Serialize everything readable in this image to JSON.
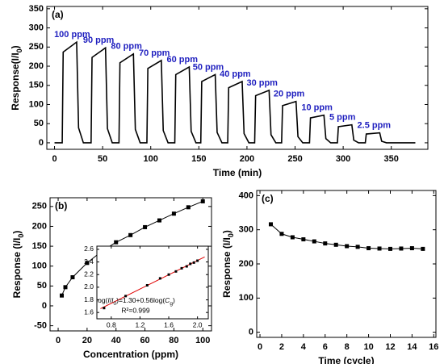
{
  "chart_data": [
    {
      "type": "line",
      "label": "(a)",
      "x_label": "Time (min)",
      "y_label": [
        "Response(I/I",
        "0",
        ")"
      ],
      "xlim": [
        -8,
        388
      ],
      "ylim": [
        -17,
        356
      ],
      "xticks": [
        0,
        50,
        100,
        150,
        200,
        250,
        300,
        350
      ],
      "yticks": [
        0,
        50,
        100,
        150,
        200,
        250,
        300,
        350
      ],
      "color": "#000000",
      "annotation_color": "#1f1fbf",
      "annotations": [
        "100 ppm",
        "90 ppm",
        "80 ppm",
        "70 ppm",
        "60 ppm",
        "50 ppm",
        "40 ppm",
        "30 ppm",
        "20 ppm",
        "10 ppm",
        "5 ppm",
        "2.5 ppm"
      ],
      "x": [
        0,
        8,
        9,
        23,
        25,
        30,
        38,
        39,
        53,
        55,
        60,
        67,
        68,
        82,
        84,
        89,
        96,
        97,
        111,
        113,
        118,
        125,
        126,
        140,
        142,
        147,
        152,
        153,
        167,
        169,
        174,
        180,
        181,
        195,
        197,
        202,
        208,
        209,
        223,
        225,
        230,
        236,
        237,
        251,
        253,
        258,
        265,
        266,
        280,
        282,
        287,
        294,
        295,
        309,
        311,
        316,
        323,
        324,
        338,
        340,
        345,
        375
      ],
      "values": [
        0,
        0,
        237,
        263,
        39,
        0,
        0,
        223,
        248,
        37,
        0,
        0,
        209,
        232,
        35,
        0,
        0,
        194,
        215,
        32,
        0,
        0,
        178,
        198,
        30,
        0,
        0,
        160,
        178,
        27,
        0,
        0,
        144,
        160,
        24,
        0,
        0,
        123,
        137,
        21,
        0,
        0,
        97,
        108,
        16,
        0,
        0,
        65,
        72,
        11,
        0,
        0,
        42,
        47,
        7,
        0,
        0,
        23,
        26,
        4,
        0,
        0
      ]
    },
    {
      "type": "line",
      "label": "(b)",
      "x_label": "Concentration (ppm)",
      "y_label": [
        "Response (I/I",
        "0",
        ")"
      ],
      "xlim": [
        -5.6,
        106
      ],
      "ylim": [
        -63,
        272
      ],
      "xticks": [
        0,
        20,
        40,
        60,
        80,
        100
      ],
      "yticks": [
        -50,
        0,
        50,
        100,
        150,
        200,
        250
      ],
      "color": "#000000",
      "markers": "square",
      "x": [
        2.5,
        5,
        10,
        20,
        30,
        40,
        50,
        60,
        70,
        80,
        90,
        100
      ],
      "values": [
        26,
        47,
        72,
        108,
        137,
        160,
        178,
        198,
        215,
        232,
        248,
        263
      ]
    },
    {
      "type": "scatter",
      "xlim": [
        0.6,
        2.15
      ],
      "ylim": [
        1.5,
        2.65
      ],
      "xticks": [
        0.8,
        1.2,
        1.6,
        {
          "value": 2,
          "label": "2.0"
        }
      ],
      "yticks": [
        1.6,
        1.8,
        {
          "value": 2,
          "label": "2.0"
        },
        2.2,
        2.4,
        2.6
      ],
      "color": "#000000",
      "x": [
        0.7,
        1.0,
        1.3,
        1.48,
        1.6,
        1.7,
        1.78,
        1.85,
        1.9,
        1.95,
        2.0
      ],
      "values": [
        1.67,
        1.86,
        2.03,
        2.14,
        2.2,
        2.25,
        2.3,
        2.33,
        2.37,
        2.39,
        2.42
      ],
      "fit": {
        "color": "#e00000",
        "x": [
          0.65,
          2.1
        ],
        "values": [
          1.66,
          2.48
        ]
      },
      "fit_label": [
        "log(",
        "I",
        "/",
        "I",
        "0",
        ")=1.30+0.56log(",
        "C",
        "g",
        ")"
      ],
      "r_label": "R²=0.999"
    },
    {
      "type": "line",
      "label": "(c)",
      "x_label": "Time (cycle)",
      "y_label": [
        "Response (I/I",
        "0",
        ")"
      ],
      "xlim": [
        -0.3,
        16.2
      ],
      "ylim": [
        -15,
        415
      ],
      "xticks": [
        0,
        2,
        4,
        6,
        8,
        10,
        12,
        14,
        16
      ],
      "yticks": [
        0,
        100,
        200,
        300,
        400
      ],
      "color": "#000000",
      "markers": "square",
      "x": [
        1,
        2,
        3,
        4,
        5,
        6,
        7,
        8,
        9,
        10,
        11,
        12,
        13,
        14,
        15
      ],
      "values": [
        316,
        288,
        278,
        272,
        266,
        260,
        256,
        252,
        250,
        246,
        245,
        244,
        245,
        246,
        244
      ]
    }
  ]
}
